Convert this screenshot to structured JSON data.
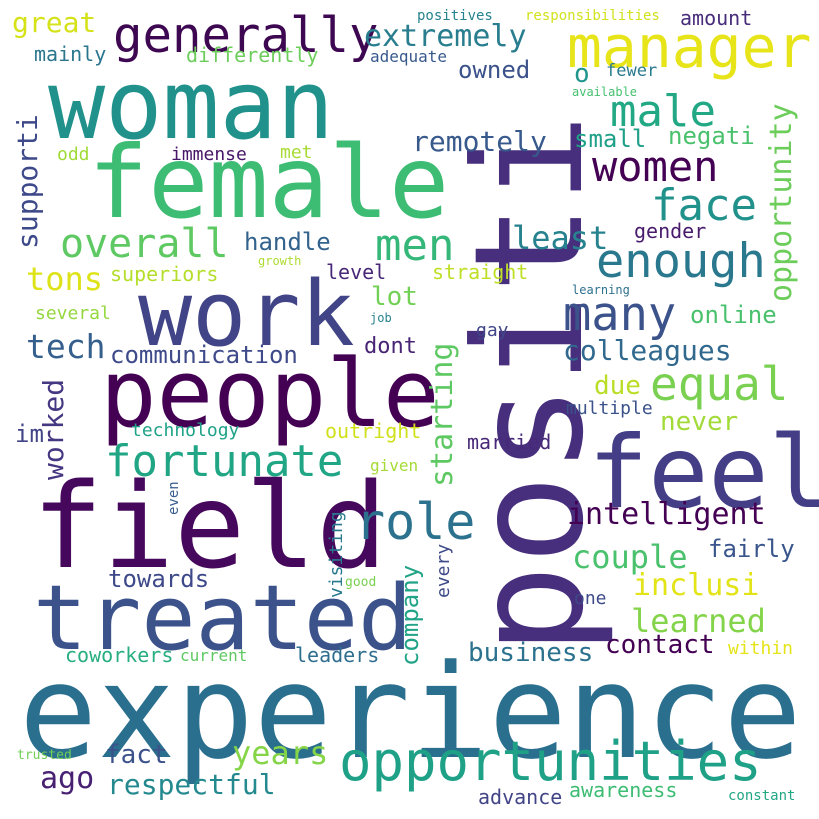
{
  "words": [
    {
      "text": "experience",
      "color": "#2a6f8e"
    },
    {
      "text": "positi",
      "color": "#472f7d"
    },
    {
      "text": "woman",
      "color": "#21918c"
    },
    {
      "text": "female",
      "color": "#3dbc74"
    },
    {
      "text": "field",
      "color": "#46085c"
    },
    {
      "text": "people",
      "color": "#440154"
    },
    {
      "text": "treated",
      "color": "#3b528b"
    },
    {
      "text": "work",
      "color": "#414487"
    },
    {
      "text": "feel",
      "color": "#433e85"
    },
    {
      "text": "opportunities",
      "color": "#1fa187"
    },
    {
      "text": "generally",
      "color": "#3e0751"
    },
    {
      "text": "manager",
      "color": "#e7e419"
    },
    {
      "text": "fortunate",
      "color": "#21a685"
    },
    {
      "text": "overall",
      "color": "#5ec962"
    },
    {
      "text": "men",
      "color": "#35b779"
    },
    {
      "text": "women",
      "color": "#440154"
    },
    {
      "text": "enough",
      "color": "#2a788e"
    },
    {
      "text": "equal",
      "color": "#7ad151"
    },
    {
      "text": "many",
      "color": "#3b528b"
    },
    {
      "text": "face",
      "color": "#21918c"
    },
    {
      "text": "male",
      "color": "#22a884"
    },
    {
      "text": "role",
      "color": "#2c728e"
    },
    {
      "text": "extremely",
      "color": "#287d8e"
    },
    {
      "text": "intelligent",
      "color": "#440154"
    },
    {
      "text": "opportunity",
      "color": "#6ccd5a"
    },
    {
      "text": "starting",
      "color": "#5ec962"
    },
    {
      "text": "colleagues",
      "color": "#31688e"
    },
    {
      "text": "couple",
      "color": "#4ac16d"
    },
    {
      "text": "learned",
      "color": "#84d44b"
    },
    {
      "text": "tech",
      "color": "#355f8d"
    },
    {
      "text": "years",
      "color": "#86d549"
    },
    {
      "text": "least",
      "color": "#26828e"
    },
    {
      "text": "remotely",
      "color": "#38598c"
    },
    {
      "text": "inclusi",
      "color": "#e2e418"
    },
    {
      "text": "contact",
      "color": "#440154"
    },
    {
      "text": "business",
      "color": "#2c728e"
    },
    {
      "text": "fact",
      "color": "#3b528b"
    },
    {
      "text": "ago",
      "color": "#482173"
    },
    {
      "text": "respectful",
      "color": "#23898e"
    },
    {
      "text": "tons",
      "color": "#dde318"
    },
    {
      "text": "supporti",
      "color": "#3e4989"
    },
    {
      "text": "great",
      "color": "#d5e21a"
    },
    {
      "text": "handle",
      "color": "#33638d"
    },
    {
      "text": "communication",
      "color": "#3e4a89"
    },
    {
      "text": "worked",
      "color": "#453781"
    },
    {
      "text": "company",
      "color": "#20a386"
    },
    {
      "text": "lot",
      "color": "#73d056"
    },
    {
      "text": "due",
      "color": "#bade28"
    },
    {
      "text": "never",
      "color": "#a2da37"
    },
    {
      "text": "fairly",
      "color": "#39558c"
    },
    {
      "text": "towards",
      "color": "#3e4989"
    },
    {
      "text": "online",
      "color": "#4ac16d"
    },
    {
      "text": "owned",
      "color": "#3b528b"
    },
    {
      "text": "small",
      "color": "#1fa088"
    },
    {
      "text": "negati",
      "color": "#4ac16d"
    },
    {
      "text": "dont",
      "color": "#482475"
    },
    {
      "text": "gender",
      "color": "#481b6d"
    },
    {
      "text": "o",
      "color": "#1f958b"
    },
    {
      "text": "advance",
      "color": "#414487"
    },
    {
      "text": "awareness",
      "color": "#3dbc74"
    },
    {
      "text": "coworkers",
      "color": "#28ae80"
    },
    {
      "text": "leaders",
      "color": "#2e6e8e"
    },
    {
      "text": "married",
      "color": "#482878"
    },
    {
      "text": "amount",
      "color": "#472c7a"
    },
    {
      "text": "mainly",
      "color": "#2a768e"
    },
    {
      "text": "differently",
      "color": "#6ccd5a"
    },
    {
      "text": "superiors",
      "color": "#b5de2b"
    },
    {
      "text": "level",
      "color": "#482878"
    },
    {
      "text": "straight",
      "color": "#bddf26"
    },
    {
      "text": "im",
      "color": "#414487"
    },
    {
      "text": "outright",
      "color": "#d0e11c"
    },
    {
      "text": "immense",
      "color": "#481668"
    },
    {
      "text": "odd",
      "color": "#a0da39"
    },
    {
      "text": "met",
      "color": "#a8db34"
    },
    {
      "text": "several",
      "color": "#95d840"
    },
    {
      "text": "technology",
      "color": "#1fa287"
    },
    {
      "text": "multiple",
      "color": "#3b528b"
    },
    {
      "text": "one",
      "color": "#3e4a89"
    },
    {
      "text": "within",
      "color": "#e5e419"
    },
    {
      "text": "current",
      "color": "#5ec962"
    },
    {
      "text": "visiting",
      "color": "#29798e"
    },
    {
      "text": "every",
      "color": "#3e4a89"
    },
    {
      "text": "given",
      "color": "#a5db36"
    },
    {
      "text": "gay",
      "color": "#404688"
    },
    {
      "text": "fewer",
      "color": "#297a8e"
    },
    {
      "text": "adequate",
      "color": "#38598c"
    },
    {
      "text": "positives",
      "color": "#26828e"
    },
    {
      "text": "responsibilities",
      "color": "#d2e21b"
    },
    {
      "text": "available",
      "color": "#46c06f"
    },
    {
      "text": "growth",
      "color": "#addc30"
    },
    {
      "text": "learning",
      "color": "#2d708e"
    },
    {
      "text": "job",
      "color": "#26828e"
    },
    {
      "text": "even",
      "color": "#365d8d"
    },
    {
      "text": "good",
      "color": "#7ad151"
    },
    {
      "text": "trusted",
      "color": "#70cf57"
    },
    {
      "text": "constant",
      "color": "#22a785"
    }
  ]
}
